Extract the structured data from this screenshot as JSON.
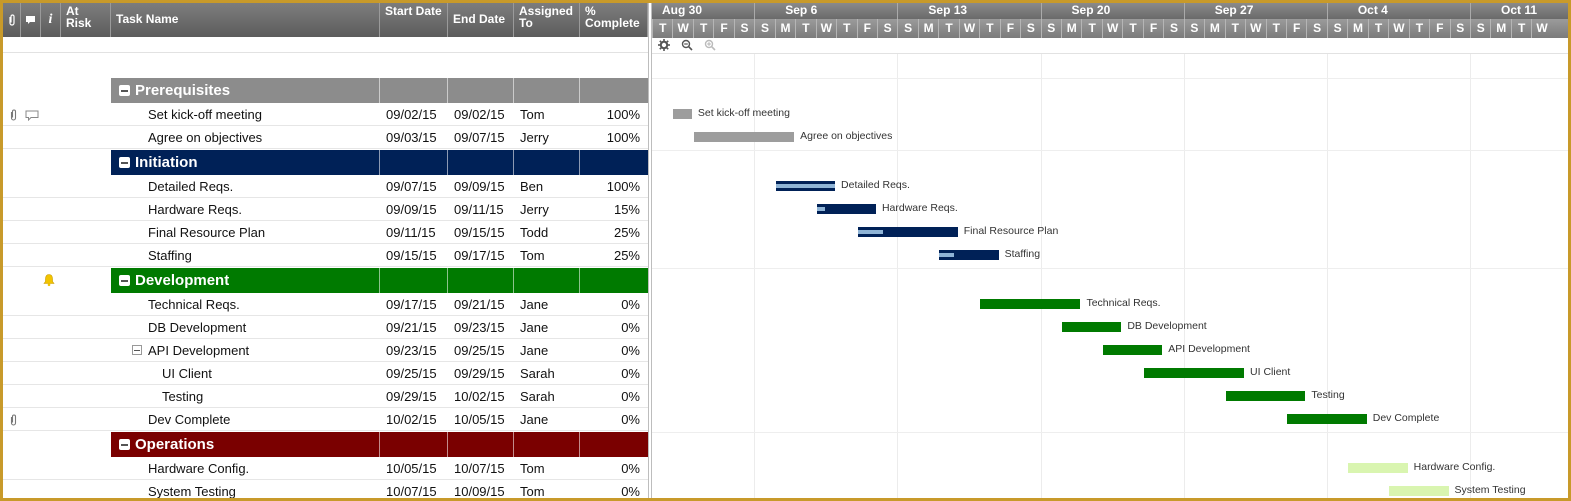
{
  "header": {
    "columns": [
      {
        "key": "attach",
        "label": ""
      },
      {
        "key": "comments",
        "label": ""
      },
      {
        "key": "info",
        "label": "i"
      },
      {
        "key": "at_risk",
        "label": "At Risk"
      },
      {
        "key": "task_name",
        "label": "Task Name"
      },
      {
        "key": "start",
        "label": "Start Date"
      },
      {
        "key": "end",
        "label": "End Date"
      },
      {
        "key": "assigned",
        "label": "Assigned To"
      },
      {
        "key": "pct",
        "label": "% Complete"
      }
    ]
  },
  "timeline": {
    "weeks": [
      "Aug 30",
      "Sep 6",
      "Sep 13",
      "Sep 20",
      "Sep 27",
      "Oct 4",
      "Oct 11"
    ],
    "days": [
      "T",
      "W",
      "T",
      "F",
      "S",
      "S",
      "M",
      "T",
      "W",
      "T",
      "F",
      "S",
      "S",
      "M",
      "T",
      "W",
      "T",
      "F",
      "S",
      "S",
      "M",
      "T",
      "W",
      "T",
      "F",
      "S",
      "S",
      "M",
      "T",
      "W",
      "T",
      "F",
      "S",
      "S",
      "M",
      "T",
      "W",
      "T",
      "F",
      "S",
      "S",
      "M",
      "T",
      "W"
    ]
  },
  "colors": {
    "prerequisites": "#8c8c8c",
    "initiation": "#002157",
    "development": "#007a00",
    "operations": "#7a0000",
    "ops_bar": "#d9f5b0",
    "progress_light": "#8fb4d6",
    "prereq_bar": "#9d9d9d"
  },
  "rows": [
    {
      "type": "section",
      "name": "Prerequisites",
      "color": "#8c8c8c"
    },
    {
      "type": "task",
      "name": "Set kick-off meeting",
      "start": "09/02/15",
      "end": "09/02/15",
      "assigned": "Tom",
      "pct": "100%",
      "attach": true,
      "comment": true
    },
    {
      "type": "task",
      "name": "Agree on objectives",
      "start": "09/03/15",
      "end": "09/07/15",
      "assigned": "Jerry",
      "pct": "100%"
    },
    {
      "type": "section",
      "name": "Initiation",
      "color": "#002157"
    },
    {
      "type": "task",
      "name": "Detailed Reqs.",
      "start": "09/07/15",
      "end": "09/09/15",
      "assigned": "Ben",
      "pct": "100%"
    },
    {
      "type": "task",
      "name": "Hardware Reqs.",
      "start": "09/09/15",
      "end": "09/11/15",
      "assigned": "Jerry",
      "pct": "15%"
    },
    {
      "type": "task",
      "name": "Final Resource Plan",
      "start": "09/11/15",
      "end": "09/15/15",
      "assigned": "Todd",
      "pct": "25%"
    },
    {
      "type": "task",
      "name": "Staffing",
      "start": "09/15/15",
      "end": "09/17/15",
      "assigned": "Tom",
      "pct": "25%"
    },
    {
      "type": "section",
      "name": "Development",
      "color": "#007a00",
      "bell": true
    },
    {
      "type": "task",
      "name": "Technical Reqs.",
      "start": "09/17/15",
      "end": "09/21/15",
      "assigned": "Jane",
      "pct": "0%"
    },
    {
      "type": "task",
      "name": "DB Development",
      "start": "09/21/15",
      "end": "09/23/15",
      "assigned": "Jane",
      "pct": "0%"
    },
    {
      "type": "task",
      "name": "API Development",
      "start": "09/23/15",
      "end": "09/25/15",
      "assigned": "Jane",
      "pct": "0%",
      "collapsible": true
    },
    {
      "type": "task",
      "name": "UI Client",
      "start": "09/25/15",
      "end": "09/29/15",
      "assigned": "Sarah",
      "pct": "0%",
      "indent": 2
    },
    {
      "type": "task",
      "name": "Testing",
      "start": "09/29/15",
      "end": "10/02/15",
      "assigned": "Sarah",
      "pct": "0%",
      "indent": 2
    },
    {
      "type": "task",
      "name": "Dev Complete",
      "start": "10/02/15",
      "end": "10/05/15",
      "assigned": "Jane",
      "pct": "0%",
      "attach": true
    },
    {
      "type": "section",
      "name": "Operations",
      "color": "#7a0000"
    },
    {
      "type": "task",
      "name": "Hardware Config.",
      "start": "10/05/15",
      "end": "10/07/15",
      "assigned": "Tom",
      "pct": "0%"
    },
    {
      "type": "task",
      "name": "System Testing",
      "start": "10/07/15",
      "end": "10/09/15",
      "assigned": "Tom",
      "pct": "0%"
    }
  ],
  "gantt_bars": [
    {
      "label": "Set kick-off meeting",
      "start": "09/02/15",
      "end": "09/02/15",
      "progress": 1.0,
      "color": "#9d9d9d",
      "prog_color": "#9d9d9d"
    },
    {
      "label": "Agree on objectives",
      "start": "09/03/15",
      "end": "09/07/15",
      "progress": 1.0,
      "color": "#9d9d9d",
      "prog_color": "#9d9d9d"
    },
    {
      "label": "Detailed Reqs.",
      "start": "09/07/15",
      "end": "09/09/15",
      "progress": 1.0,
      "color": "#002157",
      "prog_color": "#8fb4d6"
    },
    {
      "label": "Hardware Reqs.",
      "start": "09/09/15",
      "end": "09/11/15",
      "progress": 0.15,
      "color": "#002157",
      "prog_color": "#8fb4d6"
    },
    {
      "label": "Final Resource Plan",
      "start": "09/11/15",
      "end": "09/15/15",
      "progress": 0.25,
      "color": "#002157",
      "prog_color": "#8fb4d6"
    },
    {
      "label": "Staffing",
      "start": "09/15/15",
      "end": "09/17/15",
      "progress": 0.25,
      "color": "#002157",
      "prog_color": "#8fb4d6"
    },
    {
      "label": "Technical Reqs.",
      "start": "09/17/15",
      "end": "09/21/15",
      "progress": 0,
      "color": "#007a00",
      "prog_color": "#007a00"
    },
    {
      "label": "DB Development",
      "start": "09/21/15",
      "end": "09/23/15",
      "progress": 0,
      "color": "#007a00",
      "prog_color": "#007a00"
    },
    {
      "label": "API Development",
      "start": "09/23/15",
      "end": "09/25/15",
      "progress": 0,
      "color": "#007a00",
      "prog_color": "#007a00"
    },
    {
      "label": "UI Client",
      "start": "09/25/15",
      "end": "09/29/15",
      "progress": 0,
      "color": "#007a00",
      "prog_color": "#007a00"
    },
    {
      "label": "Testing",
      "start": "09/29/15",
      "end": "10/02/15",
      "progress": 0,
      "color": "#007a00",
      "prog_color": "#007a00"
    },
    {
      "label": "Dev Complete",
      "start": "10/02/15",
      "end": "10/05/15",
      "progress": 0,
      "color": "#007a00",
      "prog_color": "#007a00"
    },
    {
      "label": "Hardware Config.",
      "start": "10/05/15",
      "end": "10/07/15",
      "progress": 0,
      "color": "#d9f5b0",
      "prog_color": "#d9f5b0"
    },
    {
      "label": "System Testing",
      "start": "10/07/15",
      "end": "10/09/15",
      "progress": 0,
      "color": "#d9f5b0",
      "prog_color": "#d9f5b0"
    }
  ]
}
